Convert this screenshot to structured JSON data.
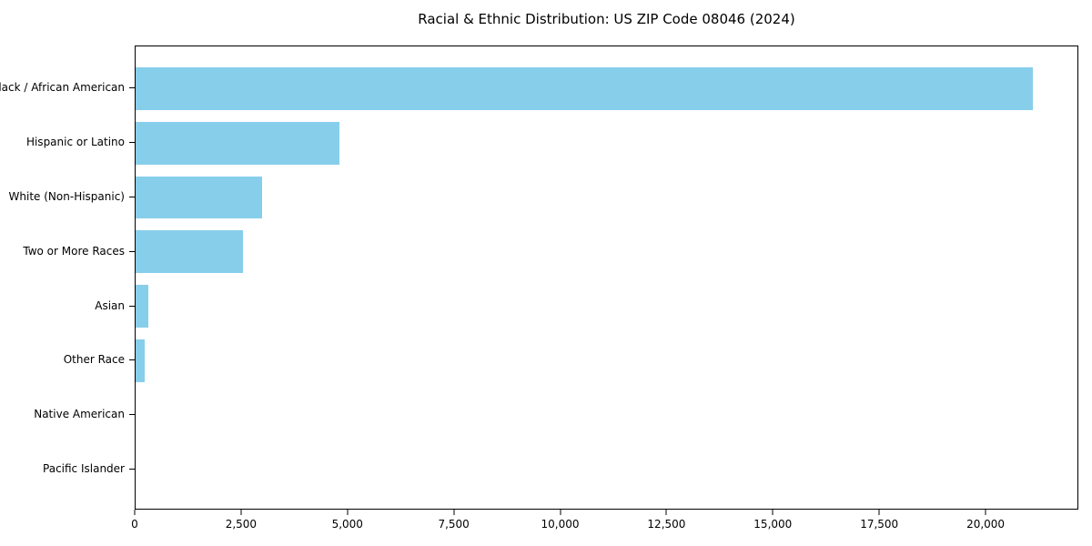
{
  "chart_data": {
    "type": "bar",
    "orientation": "horizontal",
    "title": "Racial & Ethnic Distribution: US ZIP Code 08046 (2024)",
    "categories": [
      "Black / African American",
      "Hispanic or Latino",
      "White (Non-Hispanic)",
      "Two or More Races",
      "Asian",
      "Other Race",
      "Native American",
      "Pacific Islander"
    ],
    "values": [
      21130,
      4805,
      2980,
      2520,
      290,
      220,
      0,
      0
    ],
    "xlabel": "",
    "ylabel": "",
    "xlim": [
      0,
      22180
    ],
    "xticks": [
      0,
      2500,
      5000,
      7500,
      10000,
      12500,
      15000,
      17500,
      20000
    ],
    "xtick_labels": [
      "0",
      "2,500",
      "5,000",
      "7,500",
      "10,000",
      "12,500",
      "15,000",
      "17,500",
      "20,000"
    ],
    "bar_color": "#87CEEB",
    "axis_color": "#000000",
    "background_color": "#ffffff",
    "grid": false,
    "legend": "none"
  }
}
